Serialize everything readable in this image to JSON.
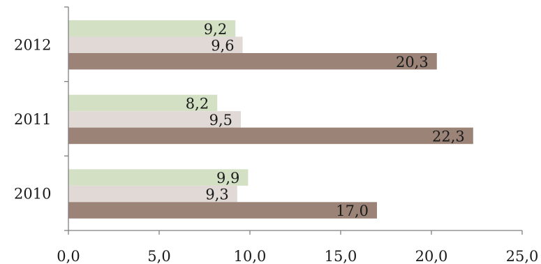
{
  "chart_data": {
    "type": "bar",
    "orientation": "horizontal",
    "categories": [
      "2012",
      "2011",
      "2010"
    ],
    "series": [
      {
        "values": [
          9.2,
          8.2,
          9.9
        ],
        "labels": [
          "9,2",
          "8,2",
          "9,9"
        ],
        "color": "#d3e0c4"
      },
      {
        "values": [
          9.6,
          9.5,
          9.3
        ],
        "labels": [
          "9,6",
          "9,5",
          "9,3"
        ],
        "color": "#e0d9d6"
      },
      {
        "values": [
          20.3,
          22.3,
          17.0
        ],
        "labels": [
          "20,3",
          "22,3",
          "17,0"
        ],
        "color": "#9b8477"
      }
    ],
    "xlim": [
      0,
      25
    ],
    "xticks": [
      0,
      5,
      10,
      15,
      20,
      25
    ],
    "xtick_labels": [
      "0,0",
      "5,0",
      "10,0",
      "15,0",
      "20,0",
      "25,0"
    ],
    "grid": false,
    "legend": "none",
    "axis_color": "#7f7f7f"
  }
}
